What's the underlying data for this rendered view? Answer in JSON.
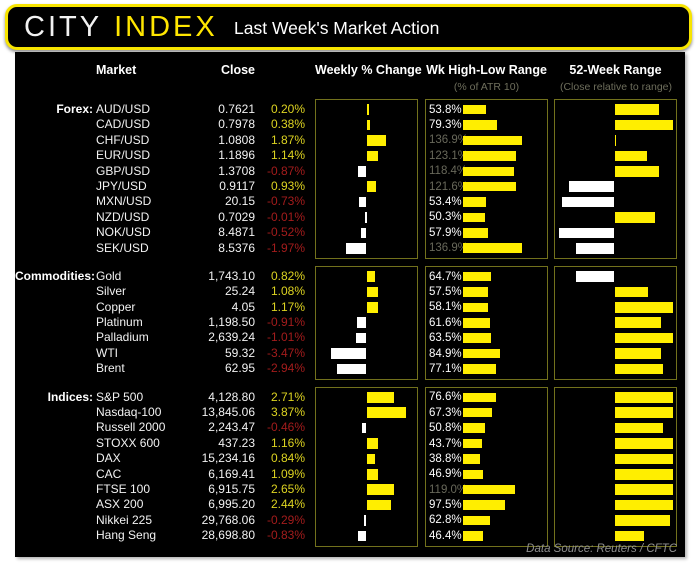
{
  "header": {
    "logo_city": "CITY",
    "logo_index": "INDEX",
    "title": "Last Week's Market Action"
  },
  "columns": {
    "market": "Market",
    "close": "Close",
    "weekly": "Weekly % Change",
    "atr": "Wk High-Low Range",
    "atr_sub": "(% of ATR 10)",
    "wk52": "52-Week Range",
    "wk52_sub": "(Close relative to range)"
  },
  "footer": {
    "data_source": "Data Source: Reuters / CFTC"
  },
  "colors": {
    "background": "#ffffff",
    "card": "#000000",
    "accent_yellow": "#ffee00",
    "logo_yellow": "#ffe600",
    "positive_text": "#ddd321",
    "negative_text": "#a31c1c",
    "dim_text": "#68685a",
    "panel_border": "#72711c",
    "negative_bar": "#ffffff"
  },
  "chart_data": {
    "type": "table",
    "title": "Last Week's Market Action",
    "columns": [
      "Market",
      "Close",
      "Weekly % Change",
      "Wk High-Low Range (% of ATR 10)",
      "52-Week Range (Close relative to range)"
    ],
    "weekly_bar_scale_pct_max": 5,
    "atr_bar_scale_pct_max": 150,
    "sections": [
      {
        "id": "forex",
        "label": "Forex:",
        "rows": [
          {
            "name": "AUD/USD",
            "close": "0.7621",
            "pct": "0.20%",
            "pct_val": 0.2,
            "atr": "53.8%",
            "atr_val": 53.8,
            "wk52": 0.88
          },
          {
            "name": "CAD/USD",
            "close": "0.7978",
            "pct": "0.38%",
            "pct_val": 0.38,
            "atr": "79.3%",
            "atr_val": 79.3,
            "wk52": 1.0
          },
          {
            "name": "CHF/USD",
            "close": "1.0808",
            "pct": "1.87%",
            "pct_val": 1.87,
            "atr": "136.9%",
            "atr_val": 136.9,
            "wk52": 0.51
          },
          {
            "name": "EUR/USD",
            "close": "1.1896",
            "pct": "1.14%",
            "pct_val": 1.14,
            "atr": "123.1%",
            "atr_val": 123.1,
            "wk52": 0.78
          },
          {
            "name": "GBP/USD",
            "close": "1.3708",
            "pct": "-0.87%",
            "pct_val": -0.87,
            "atr": "118.4%",
            "atr_val": 118.4,
            "wk52": 0.88
          },
          {
            "name": "JPY/USD",
            "close": "0.9117",
            "pct": "0.93%",
            "pct_val": 0.93,
            "atr": "121.6%",
            "atr_val": 121.6,
            "wk52": 0.11
          },
          {
            "name": "MXN/USD",
            "close": "20.15",
            "pct": "-0.73%",
            "pct_val": -0.73,
            "atr": "53.4%",
            "atr_val": 53.4,
            "wk52": 0.05
          },
          {
            "name": "NZD/USD",
            "close": "0.7029",
            "pct": "-0.01%",
            "pct_val": -0.01,
            "atr": "50.3%",
            "atr_val": 50.3,
            "wk52": 0.85
          },
          {
            "name": "NOK/USD",
            "close": "8.4871",
            "pct": "-0.52%",
            "pct_val": -0.52,
            "atr": "57.9%",
            "atr_val": 57.9,
            "wk52": 0.02
          },
          {
            "name": "SEK/USD",
            "close": "8.5376",
            "pct": "-1.97%",
            "pct_val": -1.97,
            "atr": "136.9%",
            "atr_val": 136.9,
            "wk52": 0.17
          }
        ]
      },
      {
        "id": "commodities",
        "label": "Commodities:",
        "rows": [
          {
            "name": "Gold",
            "close": "1,743.10",
            "pct": "0.82%",
            "pct_val": 0.82,
            "atr": "64.7%",
            "atr_val": 64.7,
            "wk52": 0.17
          },
          {
            "name": "Silver",
            "close": "25.24",
            "pct": "1.08%",
            "pct_val": 1.08,
            "atr": "57.5%",
            "atr_val": 57.5,
            "wk52": 0.79
          },
          {
            "name": "Copper",
            "close": "4.05",
            "pct": "1.17%",
            "pct_val": 1.17,
            "atr": "58.1%",
            "atr_val": 58.1,
            "wk52": 1.0
          },
          {
            "name": "Platinum",
            "close": "1,198.50",
            "pct": "-0.91%",
            "pct_val": -0.91,
            "atr": "61.6%",
            "atr_val": 61.6,
            "wk52": 0.9
          },
          {
            "name": "Palladium",
            "close": "2,639.24",
            "pct": "-1.01%",
            "pct_val": -1.01,
            "atr": "63.5%",
            "atr_val": 63.5,
            "wk52": 1.0
          },
          {
            "name": "WTI",
            "close": "59.32",
            "pct": "-3.47%",
            "pct_val": -3.47,
            "atr": "84.9%",
            "atr_val": 84.9,
            "wk52": 0.9
          },
          {
            "name": "Brent",
            "close": "62.95",
            "pct": "-2.94%",
            "pct_val": -2.94,
            "atr": "77.1%",
            "atr_val": 77.1,
            "wk52": 0.92
          }
        ]
      },
      {
        "id": "indices",
        "label": "Indices:",
        "rows": [
          {
            "name": "S&P 500",
            "close": "4,128.80",
            "pct": "2.71%",
            "pct_val": 2.71,
            "atr": "76.6%",
            "atr_val": 76.6,
            "wk52": 1.0
          },
          {
            "name": "Nasdaq-100",
            "close": "13,845.06",
            "pct": "3.87%",
            "pct_val": 3.87,
            "atr": "67.3%",
            "atr_val": 67.3,
            "wk52": 1.0
          },
          {
            "name": "Russell 2000",
            "close": "2,243.47",
            "pct": "-0.46%",
            "pct_val": -0.46,
            "atr": "50.8%",
            "atr_val": 50.8,
            "wk52": 0.92
          },
          {
            "name": "STOXX 600",
            "close": "437.23",
            "pct": "1.16%",
            "pct_val": 1.16,
            "atr": "43.7%",
            "atr_val": 43.7,
            "wk52": 1.0
          },
          {
            "name": "DAX",
            "close": "15,234.16",
            "pct": "0.84%",
            "pct_val": 0.84,
            "atr": "38.8%",
            "atr_val": 38.8,
            "wk52": 1.0
          },
          {
            "name": "CAC",
            "close": "6,169.41",
            "pct": "1.09%",
            "pct_val": 1.09,
            "atr": "46.9%",
            "atr_val": 46.9,
            "wk52": 1.0
          },
          {
            "name": "FTSE 100",
            "close": "6,915.75",
            "pct": "2.65%",
            "pct_val": 2.65,
            "atr": "119.0%",
            "atr_val": 119.0,
            "wk52": 1.0
          },
          {
            "name": "ASX 200",
            "close": "6,995.20",
            "pct": "2.44%",
            "pct_val": 2.44,
            "atr": "97.5%",
            "atr_val": 97.5,
            "wk52": 1.0
          },
          {
            "name": "Nikkei 225",
            "close": "29,768.06",
            "pct": "-0.29%",
            "pct_val": -0.29,
            "atr": "62.8%",
            "atr_val": 62.8,
            "wk52": 0.98
          },
          {
            "name": "Hang Seng",
            "close": "28,698.80",
            "pct": "-0.83%",
            "pct_val": -0.83,
            "atr": "46.4%",
            "atr_val": 46.4,
            "wk52": 0.75
          }
        ]
      }
    ]
  }
}
